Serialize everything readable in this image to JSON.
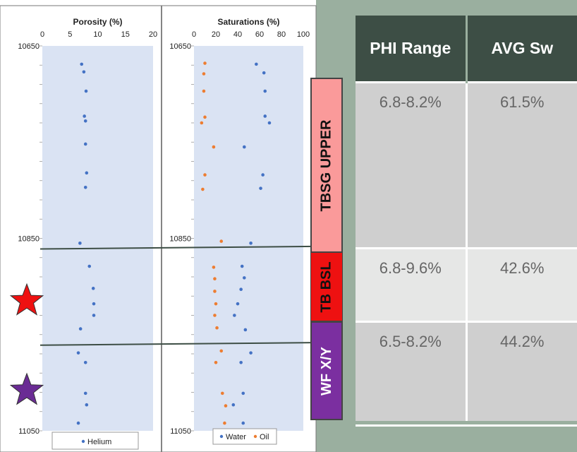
{
  "chart_data": [
    {
      "type": "scatter",
      "title": "Porosity (%)",
      "xlim": [
        0,
        20
      ],
      "xticks": [
        "0",
        "5",
        "10",
        "15",
        "20"
      ],
      "ylim": [
        10650,
        11050
      ],
      "yticks": [
        "10650",
        "10850",
        "11050"
      ],
      "y_inverted": true,
      "legend": [
        "Helium"
      ],
      "series": [
        {
          "name": "Helium",
          "color": "#4472c4",
          "points": [
            {
              "x": 7.1,
              "y": 10669
            },
            {
              "x": 7.5,
              "y": 10677
            },
            {
              "x": 7.9,
              "y": 10697
            },
            {
              "x": 7.6,
              "y": 10723
            },
            {
              "x": 7.8,
              "y": 10728
            },
            {
              "x": 7.8,
              "y": 10752
            },
            {
              "x": 8.0,
              "y": 10782
            },
            {
              "x": 7.8,
              "y": 10797
            },
            {
              "x": 6.8,
              "y": 10855
            },
            {
              "x": 8.5,
              "y": 10879
            },
            {
              "x": 9.2,
              "y": 10902
            },
            {
              "x": 9.3,
              "y": 10918
            },
            {
              "x": 9.3,
              "y": 10930
            },
            {
              "x": 6.9,
              "y": 10944
            },
            {
              "x": 6.5,
              "y": 10969
            },
            {
              "x": 7.8,
              "y": 10979
            },
            {
              "x": 7.8,
              "y": 11011
            },
            {
              "x": 8.0,
              "y": 11023
            },
            {
              "x": 6.5,
              "y": 11042
            }
          ]
        }
      ]
    },
    {
      "type": "scatter",
      "title": "Saturations (%)",
      "xlim": [
        0,
        100
      ],
      "xticks": [
        "0",
        "20",
        "40",
        "60",
        "80",
        "100"
      ],
      "ylim": [
        10650,
        11050
      ],
      "yticks": [
        "10650",
        "10850",
        "11050"
      ],
      "y_inverted": true,
      "legend": [
        "Water",
        "Oil"
      ],
      "series": [
        {
          "name": "Water",
          "color": "#4472c4",
          "points": [
            {
              "x": 57,
              "y": 10669
            },
            {
              "x": 64,
              "y": 10678
            },
            {
              "x": 65,
              "y": 10697
            },
            {
              "x": 65,
              "y": 10723
            },
            {
              "x": 69,
              "y": 10730
            },
            {
              "x": 46,
              "y": 10755
            },
            {
              "x": 63,
              "y": 10784
            },
            {
              "x": 61,
              "y": 10798
            },
            {
              "x": 52,
              "y": 10855
            },
            {
              "x": 44,
              "y": 10879
            },
            {
              "x": 46,
              "y": 10891
            },
            {
              "x": 43,
              "y": 10903
            },
            {
              "x": 40,
              "y": 10918
            },
            {
              "x": 37,
              "y": 10930
            },
            {
              "x": 47,
              "y": 10945
            },
            {
              "x": 52,
              "y": 10969
            },
            {
              "x": 43,
              "y": 10979
            },
            {
              "x": 45,
              "y": 11011
            },
            {
              "x": 36,
              "y": 11023
            },
            {
              "x": 45,
              "y": 11042
            }
          ]
        },
        {
          "name": "Oil",
          "color": "#ed7d31",
          "points": [
            {
              "x": 10,
              "y": 10668
            },
            {
              "x": 9,
              "y": 10679
            },
            {
              "x": 9,
              "y": 10697
            },
            {
              "x": 10,
              "y": 10724
            },
            {
              "x": 7,
              "y": 10730
            },
            {
              "x": 18,
              "y": 10755
            },
            {
              "x": 10,
              "y": 10784
            },
            {
              "x": 8,
              "y": 10799
            },
            {
              "x": 25,
              "y": 10853
            },
            {
              "x": 18,
              "y": 10880
            },
            {
              "x": 19,
              "y": 10892
            },
            {
              "x": 19,
              "y": 10905
            },
            {
              "x": 20,
              "y": 10918
            },
            {
              "x": 19,
              "y": 10930
            },
            {
              "x": 21,
              "y": 10943
            },
            {
              "x": 25,
              "y": 10967
            },
            {
              "x": 20,
              "y": 10979
            },
            {
              "x": 26,
              "y": 11011
            },
            {
              "x": 29,
              "y": 11024
            },
            {
              "x": 28,
              "y": 11042
            }
          ]
        }
      ]
    }
  ],
  "zones": {
    "upper": {
      "label": "TBSG UPPER",
      "color": "#fa9a9a"
    },
    "bsl": {
      "label": "TB BSL",
      "color": "#ee1111"
    },
    "wf": {
      "label": "WF X/Y",
      "color": "#7b2fa0"
    }
  },
  "boundaries": [
    10861,
    10961
  ],
  "stars": [
    {
      "color": "#ee1111",
      "depth": 10918
    },
    {
      "color": "#6a2b94",
      "depth": 11011
    }
  ],
  "table": {
    "headers": [
      "PHI Range",
      "AVG Sw"
    ],
    "rows": [
      [
        "6.8-8.2%",
        "61.5%"
      ],
      [
        "6.8-9.6%",
        "42.6%"
      ],
      [
        "6.5-8.2%",
        "44.2%"
      ]
    ]
  }
}
